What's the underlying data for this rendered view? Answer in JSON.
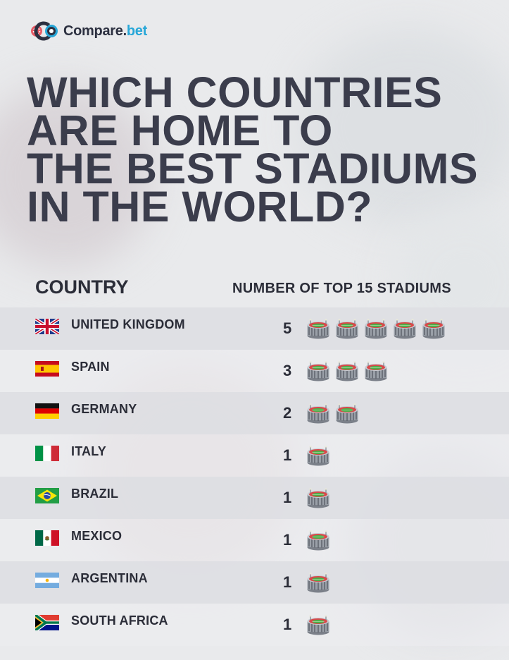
{
  "brand": {
    "name": "Compare",
    "dot": ".",
    "tld": "bet"
  },
  "headline": [
    "WHICH COUNTRIES",
    "ARE HOME TO",
    "THE BEST STADIUMS",
    "IN THE WORLD?"
  ],
  "chart_data": {
    "type": "table",
    "columns": [
      "COUNTRY",
      "NUMBER OF TOP 15 STADIUMS"
    ],
    "categories": [
      "UNITED KINGDOM",
      "SPAIN",
      "GERMANY",
      "ITALY",
      "BRAZIL",
      "MEXICO",
      "ARGENTINA",
      "SOUTH AFRICA"
    ],
    "values": [
      5,
      3,
      2,
      1,
      1,
      1,
      1,
      1
    ],
    "flags": [
      "uk-flag-icon",
      "spain-flag-icon",
      "germany-flag-icon",
      "italy-flag-icon",
      "brazil-flag-icon",
      "mexico-flag-icon",
      "argentina-flag-icon",
      "south-africa-flag-icon"
    ],
    "unit_icon": "stadium-icon"
  },
  "colors": {
    "title": "#3b3d4c",
    "accent": "#27a7d8",
    "logo_red": "#e8414d",
    "row_shade": "#dedfe3"
  }
}
